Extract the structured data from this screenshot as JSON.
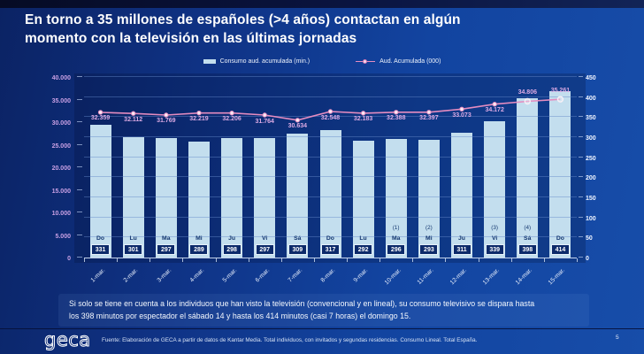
{
  "slide": {
    "title_full": "En torno a 35 millones de españoles (>4 años) contactan en algún momento con la televisión en las últimas jornadas",
    "title_lines": [
      "En torno a 35 millones de españoles (>4 años) contactan en algún",
      "momento con la televisión en las últimas jornadas"
    ],
    "note_lines": [
      "Si solo se tiene en cuenta a los individuos que han visto la televisión (convencional y en lineal), su consumo televisivo se dispara hasta",
      "los 398 minutos por espectador el sábado 14 y hasta los 414 minutos (casi 7 horas) el domingo 15."
    ],
    "footer": {
      "logo_text": "geca",
      "source": "Fuente: Elaboración de GECA a partir de datos de Kantar Media. Total individuos, con invitados y segundas residencias. Consumo Lineal. Total España.",
      "page": "5"
    }
  },
  "colors": {
    "bar": "#c3deee",
    "line": "#e58cc0",
    "line_label": "#dcaae4",
    "left_axis_label": "#c9a0e4",
    "right_axis_label": "#f2f6ff",
    "value_box_bg": "#0c2a6a",
    "slide_bg_dark": "#0b2364",
    "slide_bg_light": "#174da9"
  },
  "chart_data": {
    "type": "bar+line",
    "title": "",
    "categories": [
      "1-mar.",
      "2-mar.",
      "3-mar.",
      "4-mar.",
      "5-mar.",
      "6-mar.",
      "7-mar.",
      "8-mar.",
      "9-mar.",
      "10-mar.",
      "11-mar.",
      "12-mar.",
      "13-mar.",
      "14-mar.",
      "15-mar."
    ],
    "days": [
      "Do",
      "Lu",
      "Ma",
      "Mi",
      "Ju",
      "Vi",
      "Sá",
      "Do",
      "Lu",
      "Ma",
      "Mi",
      "Ju",
      "Vi",
      "Sá",
      "Do"
    ],
    "bar_series": {
      "name": "Consumo aud. acumulada (min.)",
      "axis": "right",
      "values": [
        331,
        301,
        297,
        289,
        298,
        297,
        309,
        317,
        292,
        296,
        293,
        311,
        339,
        398,
        414
      ]
    },
    "line_series": {
      "name": "Aud. Acumulada (000)",
      "axis": "left",
      "values": [
        32359,
        32112,
        31769,
        32219,
        32206,
        31764,
        30634,
        32548,
        32183,
        32388,
        32397,
        33073,
        34172,
        34806,
        35261
      ],
      "labels": [
        "32.359",
        "32.112",
        "31.769",
        "32.219",
        "32.206",
        "31.764",
        "30.634",
        "32.548",
        "32.183",
        "32.388",
        "32.397",
        "33.073",
        "34.172",
        "34.806",
        "35.261"
      ],
      "labels_above_indices": [
        13,
        14
      ],
      "hollow_marker_indices": [
        13,
        14
      ]
    },
    "footnotes": [
      {
        "index": 9,
        "text": "(1)"
      },
      {
        "index": 10,
        "text": "(2)"
      },
      {
        "index": 12,
        "text": "(3)"
      },
      {
        "index": 13,
        "text": "(4)"
      }
    ],
    "left_axis": {
      "max": 40000,
      "ticks": [
        "0",
        "5.000",
        "10.000",
        "15.000",
        "20.000",
        "25.000",
        "30.000",
        "35.000",
        "40.000"
      ]
    },
    "right_axis": {
      "max": 450,
      "ticks": [
        "0",
        "50",
        "100",
        "150",
        "200",
        "250",
        "300",
        "350",
        "400",
        "450"
      ]
    },
    "grid": "horizontal",
    "legend_position": "top"
  }
}
